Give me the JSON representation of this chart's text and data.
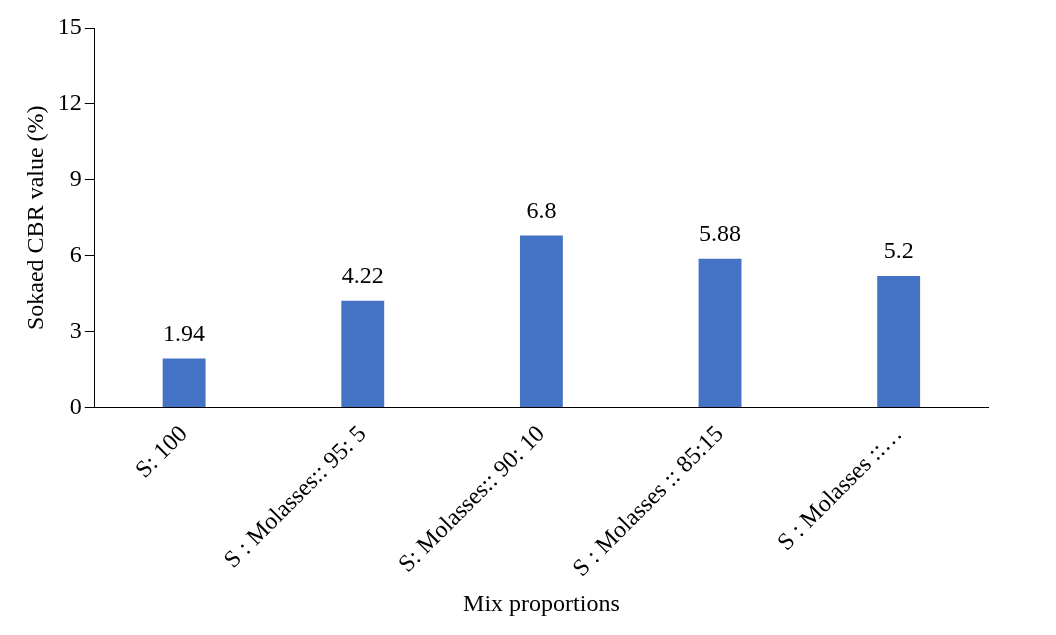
{
  "chart_data": {
    "type": "bar",
    "xlabel": "Mix proportions",
    "ylabel": "Sokaed CBR value (%)",
    "categories": [
      "S: 100",
      "S : Molasses:: 95: 5",
      "S: Molasses:: 90: 10",
      "S : Molasses :: 85:15",
      "S : Molasses ::…"
    ],
    "values": [
      1.94,
      4.22,
      6.8,
      5.88,
      5.2
    ],
    "color": "#4472c4",
    "ylim": [
      0,
      15
    ],
    "yticks": [
      0,
      3,
      6,
      9,
      12,
      15
    ],
    "grid": false,
    "legend": false,
    "data_labels": true
  }
}
